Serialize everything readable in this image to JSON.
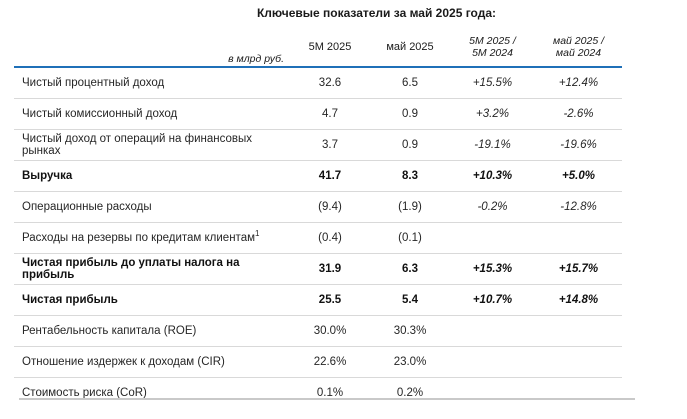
{
  "title": "Ключевые показатели за май 2025 года:",
  "styles": {
    "accent_line_color": "#1F70B8",
    "divider_color": "#D9D9D9",
    "bottom_rule_color": "#C9C9C9"
  },
  "table": {
    "unit_label": "в млрд руб.",
    "columns": [
      {
        "label": "5М 2025"
      },
      {
        "label": "май 2025"
      },
      {
        "line1": "5М 2025 /",
        "line2": "5М 2024"
      },
      {
        "line1": "май 2025 /",
        "line2": "май 2024"
      }
    ],
    "rows": [
      {
        "label": "Чистый процентный доход",
        "values": [
          "32.6",
          "6.5",
          "+15.5%",
          "+12.4%"
        ]
      },
      {
        "label": "Чистый комиссионный доход",
        "values": [
          "4.7",
          "0.9",
          "+3.2%",
          "-2.6%"
        ]
      },
      {
        "label": "Чистый доход от операций на финансовых рынках",
        "values": [
          "3.7",
          "0.9",
          "-19.1%",
          "-19.6%"
        ]
      },
      {
        "label": "Выручка",
        "bold": "true",
        "values": [
          "41.7",
          "8.3",
          "+10.3%",
          "+5.0%"
        ]
      },
      {
        "label": "Операционные расходы",
        "values": [
          "(9.4)",
          "(1.9)",
          "-0.2%",
          "-12.8%"
        ]
      },
      {
        "label": "Расходы на резервы по кредитам клиентам",
        "footnote_ref": "1",
        "values": [
          "(0.4)",
          "(0.1)",
          "",
          ""
        ]
      },
      {
        "label": "Чистая прибыль до уплаты налога на прибыль",
        "bold": "true",
        "values": [
          "31.9",
          "6.3",
          "+15.3%",
          "+15.7%"
        ]
      },
      {
        "label": "Чистая прибыль",
        "bold": "true",
        "values": [
          "25.5",
          "5.4",
          "+10.7%",
          "+14.8%"
        ]
      },
      {
        "label": "Рентабельность капитала (ROE)",
        "values": [
          "30.0%",
          "30.3%",
          "",
          ""
        ]
      },
      {
        "label": "Отношение издержек к доходам (CIR)",
        "values": [
          "22.6%",
          "23.0%",
          "",
          ""
        ]
      },
      {
        "label": "Стоимость риска (CoR)",
        "values": [
          "0.1%",
          "0.2%",
          "",
          ""
        ]
      }
    ]
  }
}
